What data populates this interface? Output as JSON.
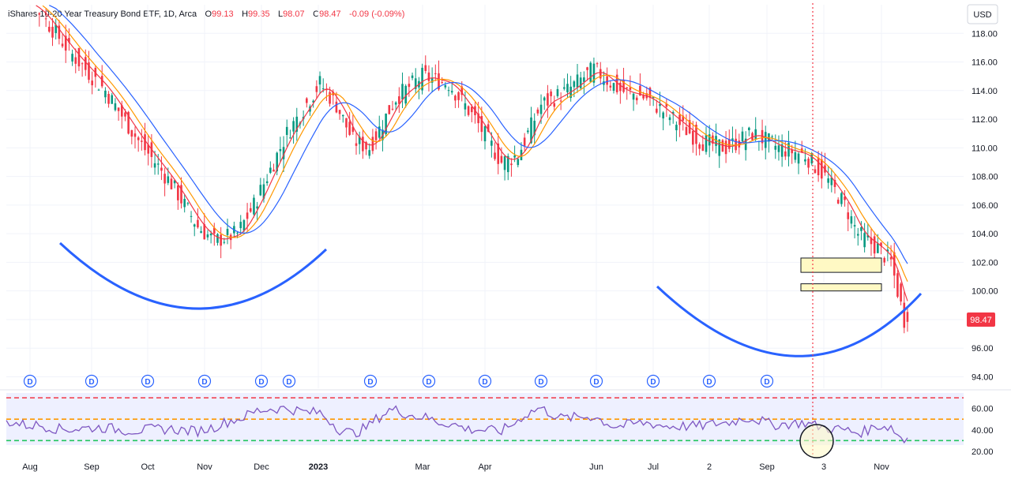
{
  "header": {
    "title": "iShares 10-20 Year Treasury Bond ETF, 1D, Arca",
    "open_label": "O",
    "open": "99.13",
    "high_label": "H",
    "high": "99.35",
    "low_label": "L",
    "low": "98.07",
    "close_label": "C",
    "close": "98.47",
    "change": "-0.09 (-0.09%)"
  },
  "currency": "USD",
  "last_price_label": "98.47",
  "colors": {
    "up": "#089981",
    "down": "#f23645",
    "ma_fast": "#f23645",
    "ma_mid": "#ff9800",
    "ma_slow": "#2962ff",
    "rsi": "#7e57c2",
    "arc": "#2962ff",
    "zone_fill": "#fff9c4"
  },
  "chart_data": [
    {
      "type": "candlestick",
      "currency": "USD",
      "y_ticks": [
        94,
        96,
        98,
        100,
        102,
        104,
        106,
        108,
        110,
        112,
        114,
        116,
        118
      ],
      "ylim": [
        93.2,
        120
      ],
      "x_labels": [
        "Aug",
        "Sep",
        "Oct",
        "Nov",
        "Dec",
        "2023",
        "Mar",
        "Apr",
        "Jun",
        "Jul",
        "2",
        "Sep",
        "3",
        "Nov"
      ],
      "x_labels_bold": [
        "2023"
      ],
      "series_close_path": [
        [
          0,
          121.0
        ],
        [
          10,
          119.5
        ],
        [
          20,
          116.5
        ],
        [
          30,
          114.0
        ],
        [
          40,
          110.5
        ],
        [
          50,
          107.5
        ],
        [
          58,
          104.5
        ],
        [
          63,
          103.5
        ],
        [
          70,
          104.0
        ],
        [
          75,
          106.0
        ],
        [
          85,
          111.0
        ],
        [
          95,
          114.5
        ],
        [
          100,
          113.0
        ],
        [
          105,
          110.5
        ],
        [
          110,
          110.0
        ],
        [
          118,
          113.5
        ],
        [
          126,
          115.0
        ],
        [
          134,
          114.5
        ],
        [
          142,
          112.0
        ],
        [
          150,
          109.0
        ],
        [
          155,
          109.5
        ],
        [
          162,
          113.0
        ],
        [
          170,
          114.0
        ],
        [
          178,
          115.5
        ],
        [
          186,
          114.0
        ],
        [
          194,
          113.5
        ],
        [
          202,
          112.0
        ],
        [
          210,
          110.5
        ],
        [
          218,
          110.0
        ],
        [
          226,
          111.0
        ],
        [
          234,
          110.0
        ],
        [
          242,
          109.5
        ],
        [
          248,
          108.0
        ],
        [
          254,
          106.0
        ],
        [
          258,
          104.0
        ],
        [
          264,
          103.0
        ],
        [
          268,
          102.0
        ],
        [
          270,
          100.0
        ],
        [
          272,
          98.0
        ],
        [
          273,
          98.47
        ]
      ],
      "current_price": 98.47,
      "ohlc_last": {
        "open": 99.13,
        "high": 99.35,
        "low": 98.07,
        "close": 98.47
      },
      "moving_averages": [
        "fast",
        "mid",
        "slow"
      ],
      "dividend_markers": 15,
      "supply_zones": [
        [
          101.3,
          102.3
        ],
        [
          100.0,
          100.5
        ]
      ]
    },
    {
      "type": "line",
      "indicator": "RSI",
      "y_ticks": [
        20,
        40,
        60
      ],
      "levels": [
        70,
        50,
        30
      ]
    }
  ]
}
